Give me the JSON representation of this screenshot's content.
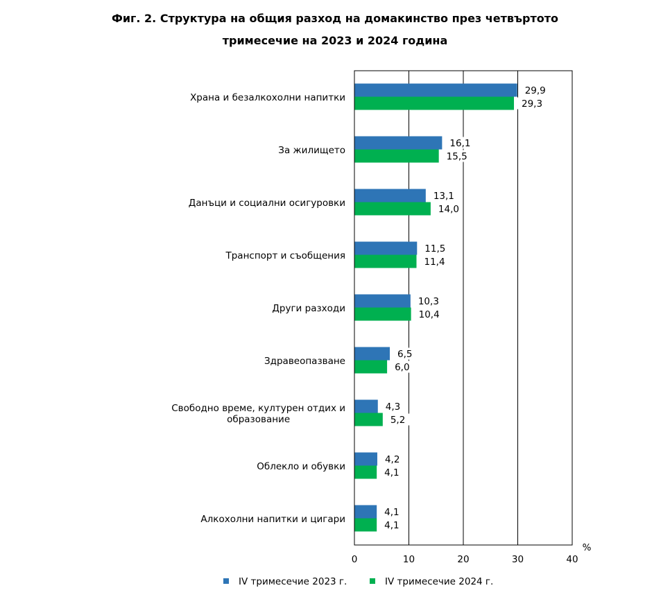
{
  "chart_data": {
    "type": "bar",
    "orientation": "horizontal",
    "title_line1": "Фиг. 2. Структура на общия разход на домакинство през четвъртото",
    "title_line2": "тримесечие на 2023 и 2024 година",
    "unit_label": "%",
    "categories": [
      [
        "Храна и безалкохолни напитки"
      ],
      [
        "За жилището"
      ],
      [
        "Данъци и социални осигуровки"
      ],
      [
        "Транспорт и съобщения"
      ],
      [
        "Други разходи"
      ],
      [
        "Здравеопазване"
      ],
      [
        "Свободно време, културен отдих и",
        "образование"
      ],
      [
        "Облекло и обувки"
      ],
      [
        "Алкохолни напитки и цигари"
      ]
    ],
    "series": [
      {
        "name": "IV тримесечие 2023 г.",
        "color": "#2e75b6",
        "values": [
          29.9,
          16.1,
          13.1,
          11.5,
          10.3,
          6.5,
          4.3,
          4.2,
          4.1
        ],
        "labels": [
          "29,9",
          "16,1",
          "13,1",
          "11,5",
          "10,3",
          "6,5",
          "4,3",
          "4,2",
          "4,1"
        ]
      },
      {
        "name": "IV тримесечие 2024 г.",
        "color": "#00b050",
        "values": [
          29.3,
          15.5,
          14.0,
          11.4,
          10.4,
          6.0,
          5.2,
          4.1,
          4.1
        ],
        "labels": [
          "29,3",
          "15,5",
          "14,0",
          "11,4",
          "10,4",
          "6,0",
          "5,2",
          "4,1",
          "4,1"
        ]
      }
    ],
    "xlim": [
      0,
      40
    ],
    "xticks": [
      0,
      10,
      20,
      30,
      40
    ],
    "grid": true,
    "legend_position": "bottom"
  }
}
